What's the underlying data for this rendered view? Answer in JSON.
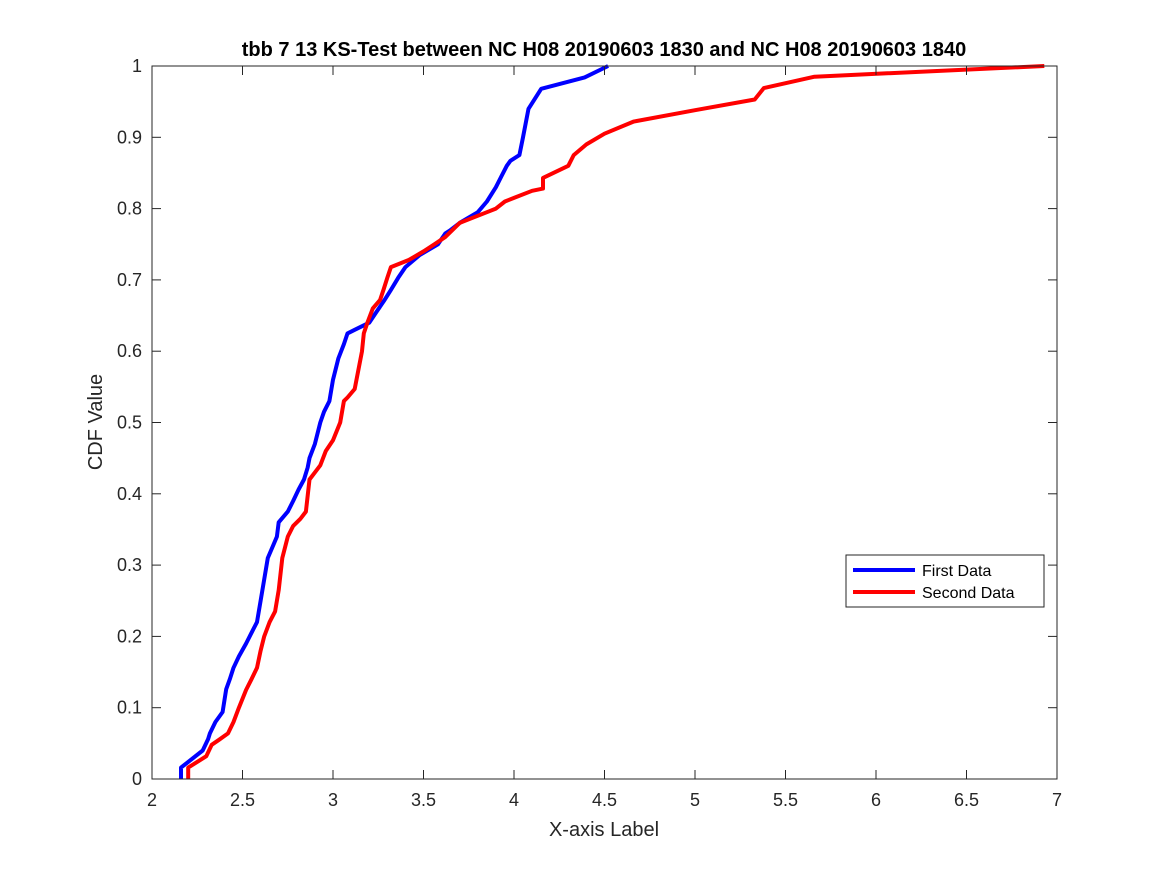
{
  "chart_data": {
    "type": "line",
    "title": "tbb 7 13 KS-Test between NC H08 20190603 1830 and NC H08 20190603 1840",
    "xlabel": "X-axis Label",
    "ylabel": "CDF Value",
    "xlim": [
      2,
      7
    ],
    "ylim": [
      0,
      1
    ],
    "xticks": [
      2,
      2.5,
      3,
      3.5,
      4,
      4.5,
      5,
      5.5,
      6,
      6.5,
      7
    ],
    "xtick_labels": [
      "2",
      "2.5",
      "3",
      "3.5",
      "4",
      "4.5",
      "5",
      "5.5",
      "6",
      "6.5",
      "7"
    ],
    "yticks": [
      0,
      0.1,
      0.2,
      0.3,
      0.4,
      0.5,
      0.6,
      0.7,
      0.8,
      0.9,
      1
    ],
    "ytick_labels": [
      "0",
      "0.1",
      "0.2",
      "0.3",
      "0.4",
      "0.5",
      "0.6",
      "0.7",
      "0.8",
      "0.9",
      "1"
    ],
    "grid": false,
    "legend_position": "lower-right",
    "series": [
      {
        "name": "First Data",
        "color": "#0000ff",
        "x": [
          2.16,
          2.16,
          2.2,
          2.28,
          2.31,
          2.32,
          2.35,
          2.39,
          2.4,
          2.41,
          2.43,
          2.45,
          2.48,
          2.52,
          2.55,
          2.58,
          2.6,
          2.62,
          2.64,
          2.67,
          2.69,
          2.7,
          2.75,
          2.78,
          2.81,
          2.84,
          2.86,
          2.87,
          2.9,
          2.93,
          2.95,
          2.98,
          3.0,
          3.01,
          3.03,
          3.06,
          3.08,
          3.12,
          3.2,
          3.24,
          3.28,
          3.32,
          3.36,
          3.4,
          3.48,
          3.58,
          3.62,
          3.65,
          3.7,
          3.8,
          3.85,
          3.9,
          3.93,
          3.96,
          3.98,
          4.03,
          4.05,
          4.08,
          4.15,
          4.39,
          4.52
        ],
        "y": [
          0,
          0.016,
          0.024,
          0.04,
          0.056,
          0.064,
          0.08,
          0.094,
          0.11,
          0.126,
          0.14,
          0.156,
          0.172,
          0.19,
          0.205,
          0.22,
          0.25,
          0.28,
          0.31,
          0.328,
          0.34,
          0.36,
          0.375,
          0.39,
          0.406,
          0.42,
          0.437,
          0.45,
          0.47,
          0.5,
          0.515,
          0.53,
          0.56,
          0.57,
          0.59,
          0.61,
          0.625,
          0.63,
          0.64,
          0.655,
          0.67,
          0.686,
          0.703,
          0.718,
          0.735,
          0.75,
          0.765,
          0.77,
          0.78,
          0.795,
          0.81,
          0.83,
          0.845,
          0.86,
          0.867,
          0.875,
          0.9,
          0.94,
          0.968,
          0.984,
          1.0
        ]
      },
      {
        "name": "Second Data",
        "color": "#ff0000",
        "x": [
          2.2,
          2.2,
          2.3,
          2.33,
          2.37,
          2.42,
          2.45,
          2.48,
          2.52,
          2.55,
          2.58,
          2.6,
          2.62,
          2.65,
          2.68,
          2.7,
          2.72,
          2.75,
          2.78,
          2.82,
          2.85,
          2.87,
          2.9,
          2.93,
          2.96,
          3.0,
          3.04,
          3.06,
          3.08,
          3.12,
          3.16,
          3.17,
          3.19,
          3.22,
          3.26,
          3.28,
          3.3,
          3.32,
          3.42,
          3.5,
          3.56,
          3.62,
          3.7,
          3.75,
          3.85,
          3.9,
          3.95,
          4.0,
          4.1,
          4.16,
          4.16,
          4.3,
          4.33,
          4.4,
          4.5,
          4.66,
          5.0,
          5.33,
          5.38,
          5.66,
          6.93
        ],
        "y": [
          0,
          0.016,
          0.032,
          0.048,
          0.055,
          0.064,
          0.08,
          0.1,
          0.125,
          0.14,
          0.156,
          0.18,
          0.2,
          0.22,
          0.235,
          0.265,
          0.31,
          0.34,
          0.355,
          0.365,
          0.375,
          0.42,
          0.43,
          0.44,
          0.46,
          0.475,
          0.5,
          0.53,
          0.535,
          0.547,
          0.6,
          0.625,
          0.64,
          0.66,
          0.672,
          0.687,
          0.703,
          0.718,
          0.728,
          0.74,
          0.75,
          0.76,
          0.78,
          0.785,
          0.795,
          0.8,
          0.81,
          0.815,
          0.825,
          0.828,
          0.843,
          0.86,
          0.875,
          0.89,
          0.905,
          0.922,
          0.938,
          0.953,
          0.969,
          0.985,
          1.0
        ]
      }
    ]
  }
}
